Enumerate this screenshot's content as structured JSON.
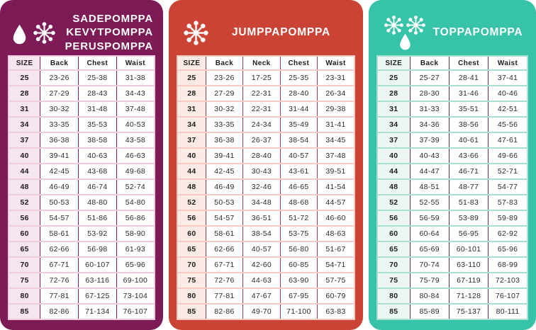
{
  "page": {
    "background": "#ffffff"
  },
  "chart_data": [
    {
      "type": "table",
      "id": "sadepomppa",
      "title": "SADEPOMPPA KEVYTPOMPPA PERUSPOMPPA",
      "title_lines": [
        "SADEPOMPPA",
        "KEVYTPOMPPA",
        "PERUSPOMPPA"
      ],
      "icons": [
        "droplet",
        "snowflake"
      ],
      "colors": {
        "background": "#7c1b55",
        "size_column_bg": "#f7e5ef",
        "row_divider": "#eecadf",
        "column_divider": "#82205a",
        "table_bg": "#ffffff",
        "title_text": "#ffffff"
      },
      "columns": [
        "SIZE",
        "Back",
        "Chest",
        "Waist"
      ],
      "rows": [
        [
          "25",
          "23-26",
          "25-38",
          "31-38"
        ],
        [
          "28",
          "27-29",
          "28-43",
          "34-43"
        ],
        [
          "31",
          "30-32",
          "31-48",
          "37-48"
        ],
        [
          "34",
          "33-35",
          "35-53",
          "40-53"
        ],
        [
          "37",
          "36-38",
          "38-58",
          "43-58"
        ],
        [
          "40",
          "39-41",
          "40-63",
          "46-63"
        ],
        [
          "44",
          "42-45",
          "43-68",
          "49-68"
        ],
        [
          "48",
          "46-49",
          "46-74",
          "52-74"
        ],
        [
          "52",
          "50-53",
          "48-80",
          "54-80"
        ],
        [
          "56",
          "54-57",
          "51-86",
          "56-86"
        ],
        [
          "60",
          "58-61",
          "53-92",
          "58-90"
        ],
        [
          "65",
          "62-66",
          "56-98",
          "61-93"
        ],
        [
          "70",
          "67-71",
          "60-107",
          "65-96"
        ],
        [
          "75",
          "72-76",
          "63-116",
          "69-100"
        ],
        [
          "80",
          "77-81",
          "67-125",
          "73-104"
        ],
        [
          "85",
          "82-86",
          "71-134",
          "76-107"
        ]
      ]
    },
    {
      "type": "table",
      "id": "jumppapomppa",
      "title": "JUMPPAPOMPPA",
      "title_lines": [
        "JUMPPAPOMPPA"
      ],
      "icons": [
        "snowflake"
      ],
      "colors": {
        "background": "#cb4334",
        "size_column_bg": "#fbeae5",
        "row_divider": "#f3c9c1",
        "column_divider": "#963e52",
        "table_bg": "#ffffff",
        "title_text": "#ffffff"
      },
      "columns": [
        "SIZE",
        "Back",
        "Neck",
        "Chest",
        "Waist"
      ],
      "rows": [
        [
          "25",
          "23-26",
          "17-25",
          "25-35",
          "23-31"
        ],
        [
          "28",
          "27-29",
          "22-31",
          "28-40",
          "26-34"
        ],
        [
          "31",
          "30-32",
          "22-31",
          "31-44",
          "29-38"
        ],
        [
          "34",
          "33-35",
          "24-34",
          "35-49",
          "31-41"
        ],
        [
          "37",
          "36-38",
          "26-37",
          "38-54",
          "34-45"
        ],
        [
          "40",
          "39-41",
          "28-40",
          "40-57",
          "37-48"
        ],
        [
          "44",
          "42-45",
          "30-43",
          "43-61",
          "39-51"
        ],
        [
          "48",
          "46-49",
          "32-46",
          "46-65",
          "41-54"
        ],
        [
          "52",
          "50-53",
          "34-48",
          "48-68",
          "44-57"
        ],
        [
          "56",
          "54-57",
          "36-51",
          "51-72",
          "46-60"
        ],
        [
          "60",
          "58-61",
          "38-54",
          "53-75",
          "48-63"
        ],
        [
          "65",
          "62-66",
          "40-57",
          "56-80",
          "51-67"
        ],
        [
          "70",
          "67-71",
          "42-60",
          "60-85",
          "54-71"
        ],
        [
          "75",
          "72-76",
          "44-63",
          "63-90",
          "57-75"
        ],
        [
          "80",
          "77-81",
          "47-67",
          "67-95",
          "60-79"
        ],
        [
          "85",
          "82-86",
          "49-70",
          "71-100",
          "63-83"
        ]
      ]
    },
    {
      "type": "table",
      "id": "toppapomppa",
      "title": "TOPPAPOMPPA",
      "title_lines": [
        "TOPPAPOMPPA"
      ],
      "icons": [
        "snowflake",
        "snowflake",
        "droplet"
      ],
      "colors": {
        "background": "#36c3a7",
        "size_column_bg": "#ecf7f3",
        "row_divider": "#a9dfd3",
        "column_divider": "#66294e",
        "table_bg": "#ffffff",
        "title_text": "#ffffff"
      },
      "columns": [
        "SIZE",
        "Back",
        "Chest",
        "Waist"
      ],
      "rows": [
        [
          "25",
          "25-27",
          "28-41",
          "37-41"
        ],
        [
          "28",
          "28-30",
          "31-46",
          "40-46"
        ],
        [
          "31",
          "31-33",
          "35-51",
          "42-51"
        ],
        [
          "34",
          "34-36",
          "38-56",
          "45-56"
        ],
        [
          "37",
          "37-39",
          "40-61",
          "47-61"
        ],
        [
          "40",
          "40-43",
          "43-66",
          "49-66"
        ],
        [
          "44",
          "44-47",
          "46-71",
          "52-71"
        ],
        [
          "48",
          "48-51",
          "48-77",
          "54-77"
        ],
        [
          "52",
          "52-55",
          "51-83",
          "57-83"
        ],
        [
          "56",
          "56-59",
          "53-89",
          "59-89"
        ],
        [
          "60",
          "60-64",
          "56-95",
          "62-92"
        ],
        [
          "65",
          "65-69",
          "60-101",
          "65-96"
        ],
        [
          "70",
          "70-74",
          "63-110",
          "68-99"
        ],
        [
          "75",
          "75-79",
          "67-119",
          "72-103"
        ],
        [
          "80",
          "80-84",
          "71-128",
          "76-107"
        ],
        [
          "85",
          "85-89",
          "75-137",
          "80-111"
        ]
      ]
    }
  ]
}
